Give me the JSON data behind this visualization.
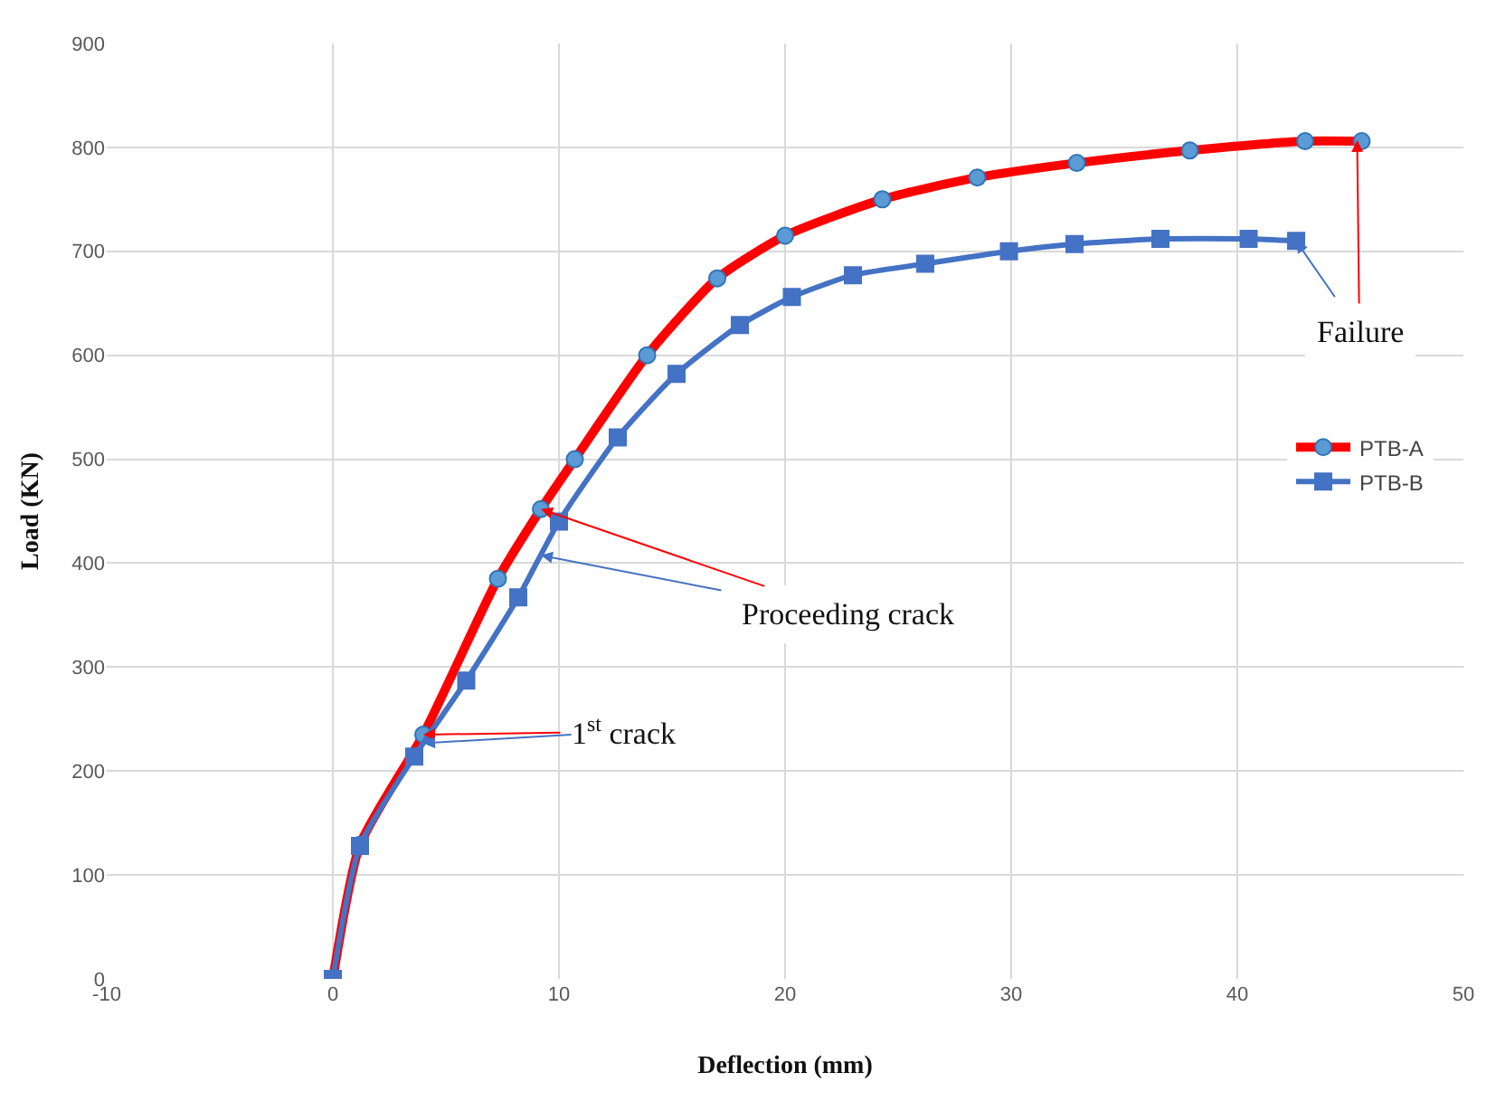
{
  "chart_data": {
    "type": "line",
    "xlabel": "Deflection (mm)",
    "ylabel": "Load (KN)",
    "xlim": [
      -10,
      50
    ],
    "xticks": [
      -10,
      0,
      10,
      20,
      30,
      40,
      50
    ],
    "ylim": [
      0,
      900
    ],
    "yticks": [
      0,
      100,
      200,
      300,
      400,
      500,
      600,
      700,
      800,
      900
    ],
    "grid": true,
    "legend": "right",
    "line_style": "solid",
    "series": [
      {
        "name": "PTB-A",
        "color": "#ff0000",
        "marker": "circle",
        "x": [
          0,
          1.2,
          4,
          7.3,
          9.2,
          10.7,
          13.9,
          17,
          20,
          24.3,
          28.5,
          32.9,
          37.9,
          43,
          45.5
        ],
        "values": [
          0,
          129,
          235,
          385,
          452,
          500,
          600,
          674,
          715,
          750,
          771,
          785,
          797,
          806,
          806
        ]
      },
      {
        "name": "PTB-B",
        "color": "#4472c4",
        "marker": "square",
        "x": [
          0,
          1.2,
          3.6,
          5.9,
          8.2,
          10,
          12.6,
          15.2,
          18,
          20.3,
          23,
          26.2,
          29.9,
          32.8,
          36.6,
          40.5,
          42.6
        ],
        "values": [
          0,
          128,
          214,
          287,
          367,
          440,
          521,
          582,
          629,
          656,
          677,
          688,
          700,
          707,
          712,
          712,
          710
        ]
      }
    ],
    "annotations": [
      {
        "text": "1$^{st}$ crack",
        "x": 4,
        "y": 235
      },
      {
        "text": "Proceeding crack",
        "x": 9.2,
        "y": 452
      },
      {
        "text": "Failure",
        "x": 45.3,
        "y": 807
      }
    ]
  }
}
